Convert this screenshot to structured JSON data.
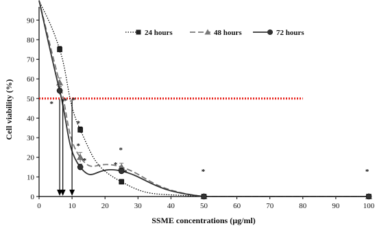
{
  "chart_data": {
    "type": "line",
    "xlabel": "SSME concentrations (µg/ml)",
    "ylabel": "Cell viability (%)",
    "xlim": [
      0,
      100
    ],
    "ylim": [
      0,
      95
    ],
    "xticks": [
      "0",
      "10",
      "20",
      "30",
      "40",
      "50",
      "60",
      "70",
      "80",
      "90",
      "100"
    ],
    "yticks": [
      "0",
      "10",
      "20",
      "30",
      "40",
      "50",
      "60",
      "70",
      "80",
      "90"
    ],
    "grid": false,
    "legend_position": "top-right",
    "reference_line": {
      "y": 50,
      "x_range": [
        0,
        80
      ],
      "color": "#e8201a",
      "style": "dotted"
    },
    "series": [
      {
        "name": "24 hours",
        "marker": "square",
        "line_style": "dotted",
        "color": "#000000",
        "points": [
          {
            "x": 0,
            "y": 100
          },
          {
            "x": 6.25,
            "y": 75
          },
          {
            "x": 12.5,
            "y": 34
          },
          {
            "x": 25,
            "y": 7.5
          },
          {
            "x": 50,
            "y": 0
          },
          {
            "x": 100,
            "y": 0
          }
        ],
        "error": [
          0,
          1.5,
          1.5,
          1.2,
          0,
          0
        ]
      },
      {
        "name": "48 hours",
        "marker": "triangle",
        "line_style": "dashed",
        "color": "#777777",
        "points": [
          {
            "x": 0,
            "y": 100
          },
          {
            "x": 6.25,
            "y": 58
          },
          {
            "x": 12.5,
            "y": 20
          },
          {
            "x": 25,
            "y": 15
          },
          {
            "x": 50,
            "y": 0
          },
          {
            "x": 100,
            "y": 0
          }
        ],
        "error": [
          0,
          2.5,
          2.5,
          2,
          0,
          0
        ]
      },
      {
        "name": "72 hours",
        "marker": "circle",
        "line_style": "solid",
        "color": "#333333",
        "points": [
          {
            "x": 0,
            "y": 100
          },
          {
            "x": 6.25,
            "y": 54
          },
          {
            "x": 12.5,
            "y": 15
          },
          {
            "x": 25,
            "y": 13
          },
          {
            "x": 50,
            "y": 0
          },
          {
            "x": 100,
            "y": 0
          }
        ],
        "error": [
          0,
          2,
          1.5,
          1.5,
          0,
          0
        ]
      }
    ],
    "ic50_arrows": [
      {
        "x": 6.25
      },
      {
        "x": 7.2
      },
      {
        "x": 10
      }
    ],
    "annotations": [
      {
        "text": "*",
        "x": 8,
        "y": 49
      },
      {
        "text": "*",
        "x": 3.8,
        "y": 47.5
      },
      {
        "text": "*",
        "x": 10.5,
        "y": 49.5
      },
      {
        "text": "*",
        "x": 11.9,
        "y": 37.5
      },
      {
        "text": "*",
        "x": 11.9,
        "y": 26
      },
      {
        "text": "*",
        "x": 13.8,
        "y": 18.5
      },
      {
        "text": "*",
        "x": 24.8,
        "y": 24
      },
      {
        "text": "*",
        "x": 23.2,
        "y": 16.5
      },
      {
        "text": "*",
        "x": 26.2,
        "y": 12.5
      },
      {
        "text": "*",
        "x": 49.8,
        "y": 13
      },
      {
        "text": "*",
        "x": 99.5,
        "y": 13
      }
    ]
  }
}
